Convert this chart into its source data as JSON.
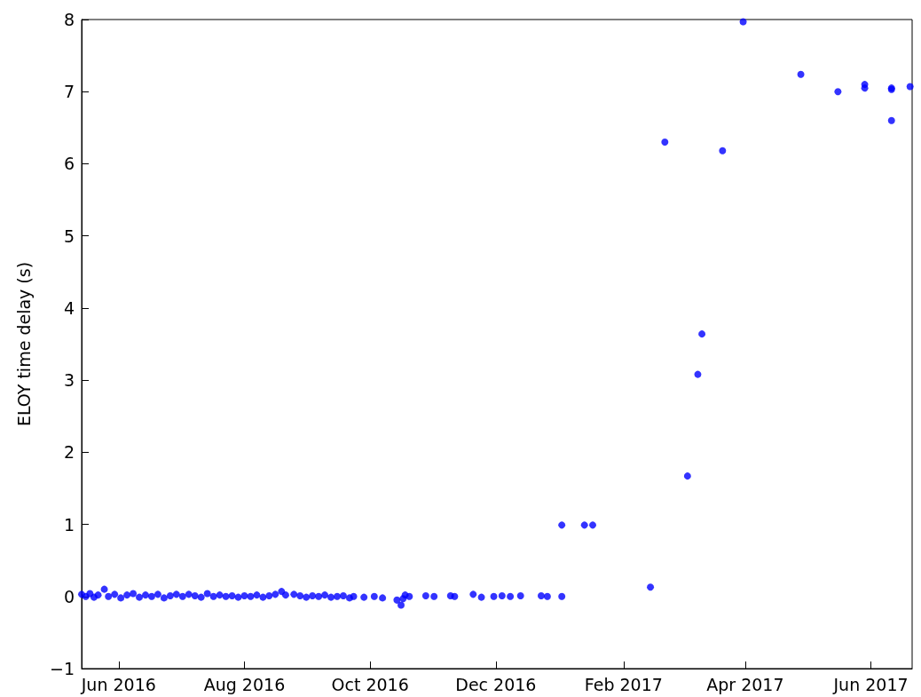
{
  "chart_data": {
    "type": "scatter",
    "ylabel": "ELOY time delay (s)",
    "xlim": [
      "2016-05-14",
      "2017-06-21"
    ],
    "xticks": [
      {
        "value": "2016-06-01",
        "label": "Jun 2016"
      },
      {
        "value": "2016-08-01",
        "label": "Aug 2016"
      },
      {
        "value": "2016-10-01",
        "label": "Oct 2016"
      },
      {
        "value": "2016-12-01",
        "label": "Dec 2016"
      },
      {
        "value": "2017-02-01",
        "label": "Feb 2017"
      },
      {
        "value": "2017-04-01",
        "label": "Apr 2017"
      },
      {
        "value": "2017-06-01",
        "label": "Jun 2017"
      }
    ],
    "ylim": [
      -1,
      8
    ],
    "yticks": [
      {
        "value": -1,
        "label": "−1"
      },
      0,
      1,
      2,
      3,
      4,
      5,
      6,
      7,
      8
    ],
    "grid": false,
    "marker": "circle",
    "series": [
      {
        "color": "#0000ff",
        "x": [
          "2016-05-14",
          "2016-05-16",
          "2016-05-18",
          "2016-05-20",
          "2016-05-22",
          "2016-05-25",
          "2016-05-27",
          "2016-05-30",
          "2016-06-02",
          "2016-06-05",
          "2016-06-08",
          "2016-06-11",
          "2016-06-14",
          "2016-06-17",
          "2016-06-20",
          "2016-06-23",
          "2016-06-26",
          "2016-06-29",
          "2016-07-02",
          "2016-07-05",
          "2016-07-08",
          "2016-07-11",
          "2016-07-14",
          "2016-07-17",
          "2016-07-20",
          "2016-07-23",
          "2016-07-26",
          "2016-07-29",
          "2016-08-01",
          "2016-08-04",
          "2016-08-07",
          "2016-08-10",
          "2016-08-13",
          "2016-08-16",
          "2016-08-19",
          "2016-08-21",
          "2016-08-25",
          "2016-08-28",
          "2016-08-31",
          "2016-09-03",
          "2016-09-06",
          "2016-09-09",
          "2016-09-12",
          "2016-09-15",
          "2016-09-18",
          "2016-09-21",
          "2016-09-23",
          "2016-09-28",
          "2016-10-03",
          "2016-10-07",
          "2016-10-14",
          "2016-10-16",
          "2016-10-17",
          "2016-10-18",
          "2016-10-20",
          "2016-10-28",
          "2016-11-01",
          "2016-11-09",
          "2016-11-11",
          "2016-11-20",
          "2016-11-24",
          "2016-11-30",
          "2016-12-04",
          "2016-12-08",
          "2016-12-13",
          "2016-12-23",
          "2016-12-26",
          "2017-01-02",
          "2017-01-02",
          "2017-01-13",
          "2017-01-17",
          "2017-02-14",
          "2017-02-21",
          "2017-03-04",
          "2017-03-09",
          "2017-03-11",
          "2017-03-21",
          "2017-03-31",
          "2017-04-28",
          "2017-05-16",
          "2017-05-29",
          "2017-05-29",
          "2017-06-11",
          "2017-06-11",
          "2017-06-11",
          "2017-06-20"
        ],
        "values": [
          0.03,
          0.0,
          0.04,
          -0.01,
          0.02,
          0.1,
          0.0,
          0.03,
          -0.02,
          0.02,
          0.04,
          -0.01,
          0.02,
          0.0,
          0.03,
          -0.02,
          0.01,
          0.03,
          0.0,
          0.03,
          0.01,
          -0.01,
          0.04,
          0.0,
          0.02,
          0.0,
          0.01,
          -0.01,
          0.01,
          0.0,
          0.02,
          -0.01,
          0.01,
          0.03,
          0.07,
          0.02,
          0.03,
          0.01,
          -0.01,
          0.01,
          0.0,
          0.02,
          -0.01,
          0.0,
          0.01,
          -0.02,
          0.0,
          -0.01,
          0.0,
          -0.02,
          -0.05,
          -0.12,
          -0.03,
          0.02,
          0.0,
          0.01,
          0.0,
          0.01,
          0.0,
          0.03,
          -0.01,
          0.0,
          0.01,
          0.0,
          0.01,
          0.01,
          0.0,
          0.0,
          0.99,
          0.99,
          0.99,
          0.13,
          6.3,
          1.67,
          3.08,
          3.64,
          6.18,
          7.97,
          7.24,
          7.0,
          7.1,
          7.05,
          7.05,
          7.03,
          6.6,
          7.07
        ]
      }
    ]
  }
}
